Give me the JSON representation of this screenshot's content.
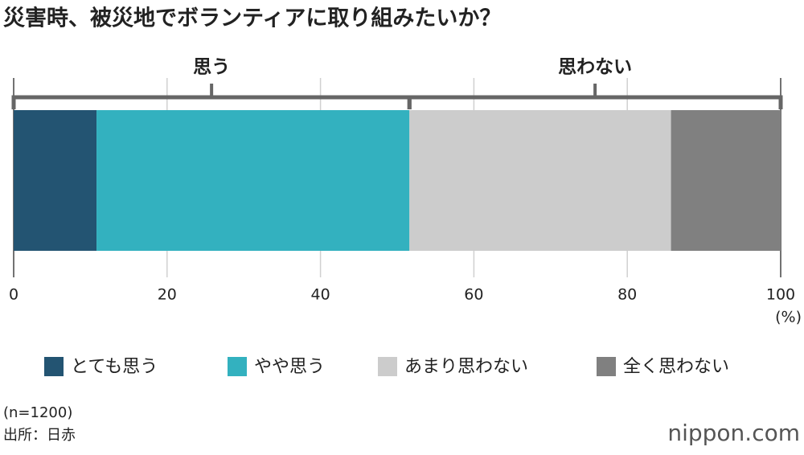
{
  "chart_data": {
    "type": "stacked-bar",
    "title": "災害時、被災地でボランティアに取り組みたいか？",
    "series": [
      {
        "name": "とても思う",
        "color": "#235472",
        "values": [
          10.8
        ]
      },
      {
        "name": "やや思う",
        "color": "#33b1bf",
        "values": [
          40.8
        ]
      },
      {
        "name": "あまり思わない",
        "color": "#cccccc",
        "values": [
          34.1
        ]
      },
      {
        "name": "全く思わない",
        "color": "#808080",
        "values": [
          14.3
        ]
      }
    ],
    "groups": [
      {
        "label": "思う",
        "series": [
          0,
          1
        ]
      },
      {
        "label": "思わない",
        "series": [
          2,
          3
        ]
      }
    ],
    "xlim": [
      0,
      100
    ],
    "xticks": [
      0,
      20,
      40,
      60,
      80,
      100
    ],
    "x_unit": "(%)",
    "grid": true,
    "note": "(n=1200)",
    "source": "出所：日赤",
    "logo": "nippon.com"
  }
}
